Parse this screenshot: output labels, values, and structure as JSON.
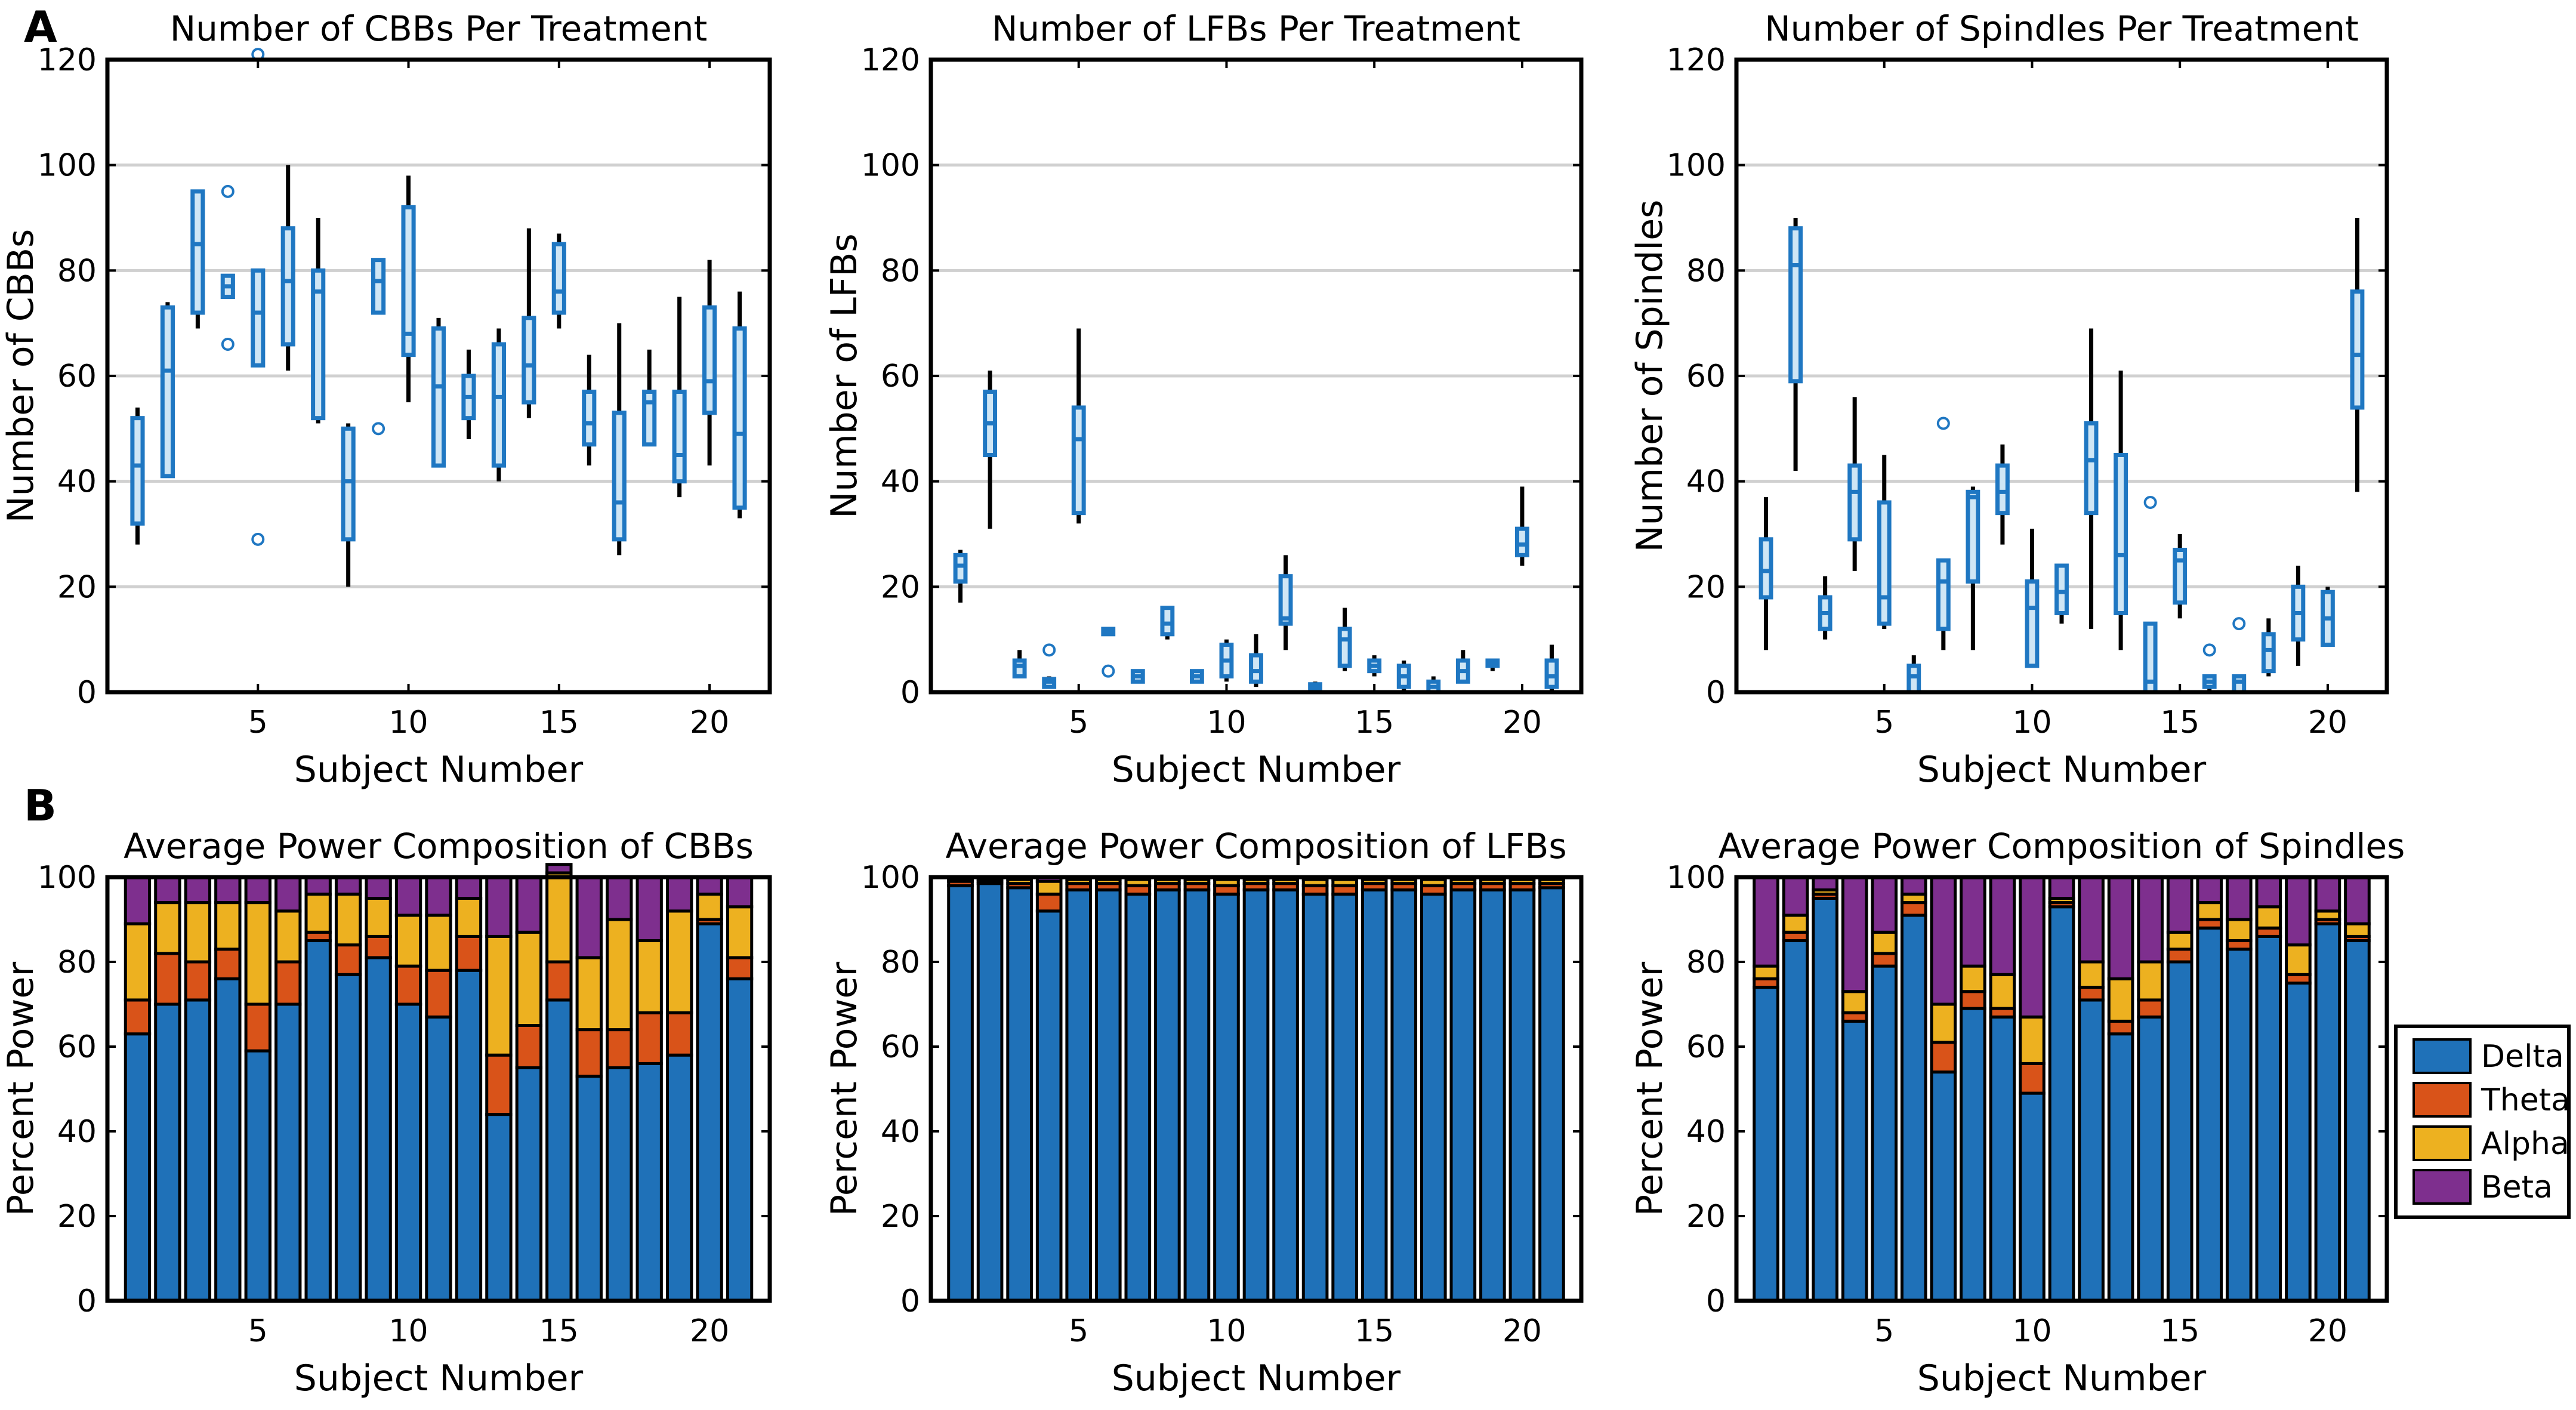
{
  "panel_labels": [
    "A",
    "B"
  ],
  "colors": {
    "box_stroke": "#1f77c2",
    "box_fill": "#cfe6f5",
    "whisker": "#000000",
    "grid": "#d0d0d0",
    "delta": "#1f71b8",
    "theta": "#d95319",
    "alpha": "#edb120",
    "beta": "#7e2f8e"
  },
  "legend": {
    "items": [
      "Delta",
      "Theta",
      "Alpha",
      "Beta"
    ],
    "placement": "right of bottom-right chart"
  },
  "chart_data": [
    {
      "type": "box",
      "title": "Number of CBBs Per Treatment",
      "xlabel": "Subject Number",
      "ylabel": "Number of CBBs",
      "ylim": [
        0,
        120
      ],
      "yticks": [
        0,
        20,
        40,
        60,
        80,
        100,
        120
      ],
      "xlim": [
        0,
        22
      ],
      "xticks": [
        5,
        10,
        15,
        20
      ],
      "grid": "horizontal",
      "boxes": [
        {
          "x": 1,
          "q1": 32,
          "med": 43,
          "q3": 52,
          "lo": 28,
          "hi": 54
        },
        {
          "x": 2,
          "q1": 41,
          "med": 61,
          "q3": 73,
          "lo": 41,
          "hi": 74
        },
        {
          "x": 3,
          "q1": 72,
          "med": 85,
          "q3": 95,
          "lo": 69,
          "hi": 95
        },
        {
          "x": 4,
          "q1": 75,
          "med": 77,
          "q3": 79,
          "lo": 75,
          "hi": 79,
          "outliers": [
            95,
            66
          ]
        },
        {
          "x": 5,
          "q1": 62,
          "med": 72,
          "q3": 80,
          "lo": 62,
          "hi": 80,
          "outliers": [
            121,
            29
          ]
        },
        {
          "x": 6,
          "q1": 66,
          "med": 78,
          "q3": 88,
          "lo": 61,
          "hi": 100
        },
        {
          "x": 7,
          "q1": 52,
          "med": 76,
          "q3": 80,
          "lo": 51,
          "hi": 90
        },
        {
          "x": 8,
          "q1": 29,
          "med": 40,
          "q3": 50,
          "lo": 20,
          "hi": 51
        },
        {
          "x": 9,
          "q1": 72,
          "med": 78,
          "q3": 82,
          "lo": 72,
          "hi": 82,
          "outliers": [
            50
          ]
        },
        {
          "x": 10,
          "q1": 64,
          "med": 68,
          "q3": 92,
          "lo": 55,
          "hi": 98
        },
        {
          "x": 11,
          "q1": 43,
          "med": 58,
          "q3": 69,
          "lo": 43,
          "hi": 71
        },
        {
          "x": 12,
          "q1": 52,
          "med": 56,
          "q3": 60,
          "lo": 48,
          "hi": 65
        },
        {
          "x": 13,
          "q1": 43,
          "med": 56,
          "q3": 66,
          "lo": 40,
          "hi": 69
        },
        {
          "x": 14,
          "q1": 55,
          "med": 62,
          "q3": 71,
          "lo": 52,
          "hi": 88
        },
        {
          "x": 15,
          "q1": 72,
          "med": 76,
          "q3": 85,
          "lo": 69,
          "hi": 87
        },
        {
          "x": 16,
          "q1": 47,
          "med": 51,
          "q3": 57,
          "lo": 43,
          "hi": 64
        },
        {
          "x": 17,
          "q1": 29,
          "med": 36,
          "q3": 53,
          "lo": 26,
          "hi": 70
        },
        {
          "x": 18,
          "q1": 47,
          "med": 55,
          "q3": 57,
          "lo": 47,
          "hi": 65
        },
        {
          "x": 19,
          "q1": 40,
          "med": 45,
          "q3": 57,
          "lo": 37,
          "hi": 75
        },
        {
          "x": 20,
          "q1": 53,
          "med": 59,
          "q3": 73,
          "lo": 43,
          "hi": 82
        },
        {
          "x": 21,
          "q1": 35,
          "med": 49,
          "q3": 69,
          "lo": 33,
          "hi": 76
        }
      ]
    },
    {
      "type": "box",
      "title": "Number of LFBs Per Treatment",
      "xlabel": "Subject Number",
      "ylabel": "Number of LFBs",
      "ylim": [
        0,
        120
      ],
      "yticks": [
        0,
        20,
        40,
        60,
        80,
        100,
        120
      ],
      "xlim": [
        0,
        22
      ],
      "xticks": [
        5,
        10,
        15,
        20
      ],
      "grid": "horizontal",
      "boxes": [
        {
          "x": 1,
          "q1": 21,
          "med": 24,
          "q3": 26,
          "lo": 17,
          "hi": 27
        },
        {
          "x": 2,
          "q1": 45,
          "med": 51,
          "q3": 57,
          "lo": 31,
          "hi": 61
        },
        {
          "x": 3,
          "q1": 3,
          "med": 5,
          "q3": 6,
          "lo": 3,
          "hi": 8
        },
        {
          "x": 4,
          "q1": 1,
          "med": 2,
          "q3": 2.5,
          "lo": 1,
          "hi": 3,
          "outliers": [
            8
          ]
        },
        {
          "x": 5,
          "q1": 34,
          "med": 48,
          "q3": 54,
          "lo": 32,
          "hi": 69
        },
        {
          "x": 6,
          "q1": 11,
          "med": 11.5,
          "q3": 12,
          "lo": 11,
          "hi": 12,
          "outliers": [
            4
          ]
        },
        {
          "x": 7,
          "q1": 2,
          "med": 3,
          "q3": 4,
          "lo": 2,
          "hi": 4
        },
        {
          "x": 8,
          "q1": 11,
          "med": 13,
          "q3": 16,
          "lo": 10,
          "hi": 16
        },
        {
          "x": 9,
          "q1": 2,
          "med": 3,
          "q3": 4,
          "lo": 2,
          "hi": 4
        },
        {
          "x": 10,
          "q1": 3,
          "med": 6,
          "q3": 9,
          "lo": 2,
          "hi": 10
        },
        {
          "x": 11,
          "q1": 2,
          "med": 4,
          "q3": 7,
          "lo": 1,
          "hi": 11
        },
        {
          "x": 12,
          "q1": 13,
          "med": 14,
          "q3": 22,
          "lo": 8,
          "hi": 26
        },
        {
          "x": 13,
          "q1": 0.5,
          "med": 1,
          "q3": 1.5,
          "lo": 0,
          "hi": 2
        },
        {
          "x": 14,
          "q1": 5,
          "med": 10,
          "q3": 12,
          "lo": 4,
          "hi": 16
        },
        {
          "x": 15,
          "q1": 4,
          "med": 5,
          "q3": 6,
          "lo": 3,
          "hi": 7
        },
        {
          "x": 16,
          "q1": 1,
          "med": 3,
          "q3": 5,
          "lo": 0,
          "hi": 6
        },
        {
          "x": 17,
          "q1": 0,
          "med": 1,
          "q3": 2,
          "lo": 0,
          "hi": 3
        },
        {
          "x": 18,
          "q1": 2,
          "med": 4,
          "q3": 6,
          "lo": 2,
          "hi": 8
        },
        {
          "x": 19,
          "q1": 5,
          "med": 5.5,
          "q3": 6,
          "lo": 4,
          "hi": 6
        },
        {
          "x": 20,
          "q1": 26,
          "med": 28,
          "q3": 31,
          "lo": 24,
          "hi": 39
        },
        {
          "x": 21,
          "q1": 1,
          "med": 3,
          "q3": 6,
          "lo": 0,
          "hi": 9
        }
      ]
    },
    {
      "type": "box",
      "title": "Number of Spindles Per Treatment",
      "xlabel": "Subject Number",
      "ylabel": "Number of Spindles",
      "ylim": [
        0,
        120
      ],
      "yticks": [
        0,
        20,
        40,
        60,
        80,
        100,
        120
      ],
      "xlim": [
        0,
        22
      ],
      "xticks": [
        5,
        10,
        15,
        20
      ],
      "grid": "horizontal",
      "boxes": [
        {
          "x": 1,
          "q1": 18,
          "med": 23,
          "q3": 29,
          "lo": 8,
          "hi": 37
        },
        {
          "x": 2,
          "q1": 59,
          "med": 81,
          "q3": 88,
          "lo": 42,
          "hi": 90
        },
        {
          "x": 3,
          "q1": 12,
          "med": 15,
          "q3": 18,
          "lo": 10,
          "hi": 22
        },
        {
          "x": 4,
          "q1": 29,
          "med": 38,
          "q3": 43,
          "lo": 23,
          "hi": 56
        },
        {
          "x": 5,
          "q1": 13,
          "med": 18,
          "q3": 36,
          "lo": 12,
          "hi": 45
        },
        {
          "x": 6,
          "q1": 0,
          "med": 3,
          "q3": 5,
          "lo": 0,
          "hi": 7
        },
        {
          "x": 7,
          "q1": 12,
          "med": 21,
          "q3": 25,
          "lo": 8,
          "hi": 25,
          "outliers": [
            51
          ]
        },
        {
          "x": 8,
          "q1": 21,
          "med": 37,
          "q3": 38,
          "lo": 8,
          "hi": 39
        },
        {
          "x": 9,
          "q1": 34,
          "med": 38,
          "q3": 43,
          "lo": 28,
          "hi": 47
        },
        {
          "x": 10,
          "q1": 5,
          "med": 16,
          "q3": 21,
          "lo": 5,
          "hi": 31
        },
        {
          "x": 11,
          "q1": 15,
          "med": 19,
          "q3": 24,
          "lo": 13,
          "hi": 24
        },
        {
          "x": 12,
          "q1": 34,
          "med": 44,
          "q3": 51,
          "lo": 12,
          "hi": 69
        },
        {
          "x": 13,
          "q1": 15,
          "med": 26,
          "q3": 45,
          "lo": 8,
          "hi": 61
        },
        {
          "x": 14,
          "q1": 0,
          "med": 2,
          "q3": 13,
          "lo": 0,
          "hi": 13,
          "outliers": [
            36
          ]
        },
        {
          "x": 15,
          "q1": 17,
          "med": 25,
          "q3": 27,
          "lo": 14,
          "hi": 30
        },
        {
          "x": 16,
          "q1": 1,
          "med": 2,
          "q3": 3,
          "lo": 0,
          "hi": 3,
          "outliers": [
            8
          ]
        },
        {
          "x": 17,
          "q1": 0,
          "med": 2,
          "q3": 3,
          "lo": 0,
          "hi": 3,
          "outliers": [
            13
          ]
        },
        {
          "x": 18,
          "q1": 4,
          "med": 8,
          "q3": 11,
          "lo": 3,
          "hi": 14
        },
        {
          "x": 19,
          "q1": 10,
          "med": 15,
          "q3": 20,
          "lo": 5,
          "hi": 24
        },
        {
          "x": 20,
          "q1": 9,
          "med": 14,
          "q3": 19,
          "lo": 9,
          "hi": 20
        },
        {
          "x": 21,
          "q1": 54,
          "med": 64,
          "q3": 76,
          "lo": 38,
          "hi": 90
        }
      ]
    },
    {
      "type": "stacked-bar",
      "title": "Average Power Composition of CBBs",
      "xlabel": "Subject Number",
      "ylabel": "Percent Power",
      "ylim": [
        0,
        100
      ],
      "yticks": [
        0,
        20,
        40,
        60,
        80,
        100
      ],
      "xlim": [
        0,
        22
      ],
      "xticks": [
        5,
        10,
        15,
        20
      ],
      "series": [
        {
          "name": "Delta",
          "values": [
            63,
            70,
            71,
            76,
            59,
            70,
            85,
            77,
            81,
            70,
            67,
            78,
            44,
            55,
            71,
            53,
            55,
            56,
            58,
            89,
            76
          ]
        },
        {
          "name": "Theta",
          "values": [
            8,
            12,
            9,
            7,
            11,
            10,
            2,
            7,
            5,
            9,
            11,
            8,
            14,
            10,
            9,
            11,
            9,
            12,
            10,
            1,
            5
          ]
        },
        {
          "name": "Alpha",
          "values": [
            18,
            12,
            14,
            11,
            24,
            12,
            9,
            12,
            9,
            12,
            13,
            9,
            28,
            22,
            21,
            17,
            26,
            17,
            24,
            6,
            12
          ]
        },
        {
          "name": "Beta",
          "values": [
            11,
            6,
            6,
            6,
            6,
            8,
            4,
            4,
            5,
            9,
            9,
            5,
            14,
            13,
            2,
            19,
            10,
            15,
            8,
            4,
            7
          ]
        }
      ]
    },
    {
      "type": "stacked-bar",
      "title": "Average Power Composition of LFBs",
      "xlabel": "Subject Number",
      "ylabel": "Percent Power",
      "ylim": [
        0,
        100
      ],
      "yticks": [
        0,
        20,
        40,
        60,
        80,
        100
      ],
      "xlim": [
        0,
        22
      ],
      "xticks": [
        5,
        10,
        15,
        20
      ],
      "series": [
        {
          "name": "Delta",
          "values": [
            98,
            98.5,
            97.5,
            92,
            97,
            97,
            96,
            97,
            97,
            96,
            97,
            97,
            96,
            96,
            97,
            97,
            96,
            97,
            97,
            97,
            97.5
          ]
        },
        {
          "name": "Theta",
          "values": [
            1,
            0.5,
            1,
            4,
            1.5,
            1.5,
            2,
            1.5,
            1.5,
            2,
            1.5,
            1.5,
            2,
            2,
            1.5,
            1.5,
            2,
            1.5,
            1.5,
            1.5,
            1
          ]
        },
        {
          "name": "Alpha",
          "values": [
            0.5,
            0.5,
            1,
            3,
            1,
            1,
            1.5,
            1,
            1,
            1.5,
            1,
            1,
            1.5,
            1.5,
            1,
            1,
            1.5,
            1,
            1,
            1,
            1
          ]
        },
        {
          "name": "Beta",
          "values": [
            0.5,
            0.5,
            0.5,
            1,
            0.5,
            0.5,
            0.5,
            0.5,
            0.5,
            0.5,
            0.5,
            0.5,
            0.5,
            0.5,
            0.5,
            0.5,
            0.5,
            0.5,
            0.5,
            0.5,
            0.5
          ]
        }
      ]
    },
    {
      "type": "stacked-bar",
      "title": "Average Power Composition of Spindles",
      "xlabel": "Subject Number",
      "ylabel": "Percent Power",
      "ylim": [
        0,
        100
      ],
      "yticks": [
        0,
        20,
        40,
        60,
        80,
        100
      ],
      "xlim": [
        0,
        22
      ],
      "xticks": [
        5,
        10,
        15,
        20
      ],
      "series": [
        {
          "name": "Delta",
          "values": [
            74,
            85,
            95,
            66,
            79,
            91,
            54,
            69,
            67,
            49,
            93,
            71,
            63,
            67,
            80,
            88,
            83,
            86,
            75,
            89,
            85
          ]
        },
        {
          "name": "Theta",
          "values": [
            2,
            2,
            1,
            2,
            3,
            3,
            7,
            4,
            2,
            7,
            1,
            3,
            3,
            4,
            3,
            2,
            2,
            2,
            2,
            1,
            1
          ]
        },
        {
          "name": "Alpha",
          "values": [
            3,
            4,
            1,
            5,
            5,
            2,
            9,
            6,
            8,
            11,
            1,
            6,
            10,
            9,
            4,
            4,
            5,
            5,
            7,
            2,
            3
          ]
        },
        {
          "name": "Beta",
          "values": [
            21,
            9,
            3,
            27,
            13,
            4,
            30,
            21,
            23,
            33,
            5,
            20,
            24,
            20,
            13,
            6,
            10,
            7,
            16,
            8,
            11
          ]
        }
      ]
    }
  ]
}
